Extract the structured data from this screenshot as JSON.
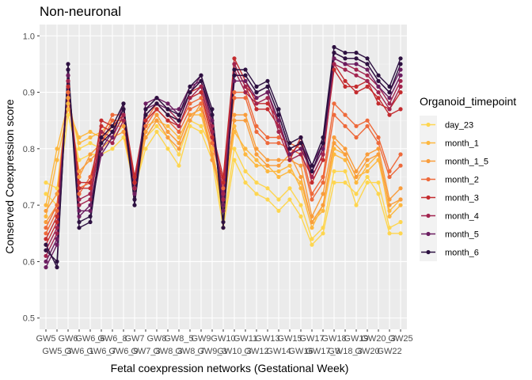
{
  "chart_data": {
    "type": "line",
    "title": "Non-neuronal",
    "xlabel": "Fetal coexpression networks (Gestational Week)",
    "ylabel": "Conserved Coexpression score",
    "ylim": [
      0.48,
      1.02
    ],
    "yticks": [
      0.5,
      0.6,
      0.7,
      0.8,
      0.9,
      1.0
    ],
    "grid": true,
    "legend_position": "right",
    "categories": [
      "GW5",
      "GW5_3",
      "GW6",
      "GW6_1",
      "GW6_6",
      "GW6_7",
      "GW6_8",
      "GW6_9",
      "GW7",
      "GW7_3",
      "GW8",
      "GW8_3",
      "GW8_5",
      "GW8_7",
      "GW9",
      "GW9_3",
      "GW10",
      "GW10_3",
      "GW11",
      "GW12",
      "GW13",
      "GW14",
      "GW15",
      "GW16",
      "GW17",
      "GW17_3",
      "GW18",
      "GW18_3",
      "GW19",
      "GW20",
      "GW20_3",
      "GW22",
      "GW25"
    ],
    "x_tick_labels": [
      "GW5",
      "GW5_3",
      "GW6",
      "GW6_1",
      "GW6_6",
      "GW6_7",
      "GW6_8",
      "GW6_9",
      "GW7",
      "GW7_3",
      "GW8",
      "GW8_3",
      "GW8_5",
      "GW8_7",
      "GW9",
      "GW9_3",
      "GW10",
      "GW10_3",
      "GW11",
      "GW12",
      "GW13",
      "GW14",
      "GW15",
      "GW16",
      "GW17",
      "GW17_3",
      "GW18",
      "GW18_3",
      "GW19",
      "GW20",
      "GW20_3",
      "GW22",
      "GW25"
    ],
    "legend_title": "Organoid_timepoint",
    "series": [
      {
        "name": "day_23",
        "color": "#FED650",
        "lines": [
          [
            0.74,
            0.73,
            0.89,
            0.8,
            0.81,
            0.8,
            0.82,
            0.84,
            0.72,
            0.82,
            0.84,
            0.82,
            0.79,
            0.85,
            0.84,
            0.8,
            0.67,
            0.8,
            0.76,
            0.74,
            0.73,
            0.71,
            0.73,
            0.7,
            0.64,
            0.66,
            0.76,
            0.76,
            0.7,
            0.74,
            0.74,
            0.66,
            0.67
          ],
          [
            0.72,
            0.7,
            0.86,
            0.78,
            0.79,
            0.79,
            0.8,
            0.82,
            0.73,
            0.8,
            0.83,
            0.8,
            0.77,
            0.84,
            0.83,
            0.78,
            0.66,
            0.78,
            0.74,
            0.72,
            0.71,
            0.69,
            0.71,
            0.68,
            0.63,
            0.65,
            0.74,
            0.74,
            0.72,
            0.75,
            0.72,
            0.65,
            0.65
          ]
        ]
      },
      {
        "name": "month_1",
        "color": "#FDB840",
        "lines": [
          [
            0.7,
            0.8,
            0.88,
            0.81,
            0.82,
            0.83,
            0.85,
            0.85,
            0.75,
            0.84,
            0.85,
            0.84,
            0.82,
            0.86,
            0.86,
            0.79,
            0.69,
            0.84,
            0.79,
            0.77,
            0.77,
            0.75,
            0.76,
            0.74,
            0.67,
            0.69,
            0.79,
            0.78,
            0.74,
            0.77,
            0.79,
            0.68,
            0.7
          ],
          [
            0.68,
            0.78,
            0.87,
            0.82,
            0.83,
            0.82,
            0.84,
            0.85,
            0.74,
            0.83,
            0.86,
            0.83,
            0.81,
            0.86,
            0.87,
            0.8,
            0.7,
            0.83,
            0.8,
            0.78,
            0.76,
            0.76,
            0.77,
            0.73,
            0.66,
            0.7,
            0.8,
            0.79,
            0.75,
            0.76,
            0.78,
            0.69,
            0.71
          ]
        ]
      },
      {
        "name": "month_1_5",
        "color": "#F99D3C",
        "lines": [
          [
            0.69,
            0.72,
            0.9,
            0.75,
            0.79,
            0.81,
            0.84,
            0.84,
            0.74,
            0.83,
            0.86,
            0.83,
            0.81,
            0.86,
            0.87,
            0.79,
            0.7,
            0.86,
            0.86,
            0.8,
            0.78,
            0.78,
            0.78,
            0.77,
            0.68,
            0.72,
            0.82,
            0.8,
            0.76,
            0.79,
            0.8,
            0.71,
            0.73
          ],
          [
            0.67,
            0.7,
            0.89,
            0.76,
            0.78,
            0.8,
            0.82,
            0.83,
            0.73,
            0.82,
            0.85,
            0.82,
            0.8,
            0.85,
            0.88,
            0.78,
            0.71,
            0.85,
            0.85,
            0.79,
            0.77,
            0.77,
            0.79,
            0.75,
            0.67,
            0.7,
            0.81,
            0.79,
            0.75,
            0.78,
            0.79,
            0.7,
            0.71
          ]
        ]
      },
      {
        "name": "month_2",
        "color": "#EE6A3B",
        "lines": [
          [
            0.66,
            0.7,
            0.91,
            0.72,
            0.75,
            0.82,
            0.86,
            0.86,
            0.75,
            0.85,
            0.88,
            0.86,
            0.84,
            0.88,
            0.89,
            0.82,
            0.74,
            0.9,
            0.9,
            0.84,
            0.82,
            0.82,
            0.81,
            0.8,
            0.72,
            0.75,
            0.88,
            0.86,
            0.84,
            0.85,
            0.82,
            0.76,
            0.79
          ],
          [
            0.65,
            0.69,
            0.9,
            0.73,
            0.74,
            0.81,
            0.85,
            0.85,
            0.74,
            0.84,
            0.87,
            0.85,
            0.83,
            0.87,
            0.88,
            0.81,
            0.73,
            0.89,
            0.89,
            0.83,
            0.81,
            0.81,
            0.8,
            0.79,
            0.71,
            0.74,
            0.86,
            0.84,
            0.82,
            0.84,
            0.81,
            0.75,
            0.77
          ]
        ]
      },
      {
        "name": "month_3",
        "color": "#C42C2F",
        "lines": [
          [
            0.64,
            0.68,
            0.92,
            0.74,
            0.74,
            0.84,
            0.83,
            0.87,
            0.75,
            0.86,
            0.88,
            0.86,
            0.85,
            0.9,
            0.91,
            0.83,
            0.75,
            0.96,
            0.92,
            0.88,
            0.88,
            0.85,
            0.78,
            0.82,
            0.74,
            0.78,
            0.95,
            0.92,
            0.9,
            0.91,
            0.89,
            0.86,
            0.87
          ],
          [
            0.63,
            0.67,
            0.91,
            0.73,
            0.73,
            0.85,
            0.84,
            0.86,
            0.74,
            0.85,
            0.87,
            0.85,
            0.84,
            0.89,
            0.9,
            0.82,
            0.74,
            0.95,
            0.91,
            0.87,
            0.87,
            0.84,
            0.79,
            0.81,
            0.75,
            0.79,
            0.94,
            0.91,
            0.91,
            0.92,
            0.88,
            0.87,
            0.9
          ]
        ]
      },
      {
        "name": "month_4",
        "color": "#A2244F",
        "lines": [
          [
            0.62,
            0.66,
            0.93,
            0.71,
            0.72,
            0.83,
            0.82,
            0.86,
            0.73,
            0.87,
            0.89,
            0.87,
            0.85,
            0.9,
            0.92,
            0.84,
            0.72,
            0.95,
            0.91,
            0.89,
            0.9,
            0.84,
            0.79,
            0.8,
            0.76,
            0.8,
            0.96,
            0.95,
            0.94,
            0.93,
            0.91,
            0.88,
            0.92
          ],
          [
            0.61,
            0.65,
            0.92,
            0.7,
            0.71,
            0.82,
            0.81,
            0.85,
            0.72,
            0.86,
            0.88,
            0.86,
            0.84,
            0.89,
            0.91,
            0.83,
            0.71,
            0.94,
            0.9,
            0.88,
            0.89,
            0.83,
            0.78,
            0.79,
            0.75,
            0.79,
            0.95,
            0.94,
            0.93,
            0.92,
            0.9,
            0.87,
            0.91
          ]
        ]
      },
      {
        "name": "month_5",
        "color": "#6C1E61",
        "lines": [
          [
            0.6,
            0.64,
            0.94,
            0.68,
            0.7,
            0.8,
            0.83,
            0.87,
            0.72,
            0.88,
            0.89,
            0.88,
            0.86,
            0.9,
            0.93,
            0.86,
            0.7,
            0.93,
            0.93,
            0.9,
            0.91,
            0.86,
            0.8,
            0.81,
            0.77,
            0.81,
            0.97,
            0.96,
            0.96,
            0.95,
            0.92,
            0.9,
            0.94
          ],
          [
            0.59,
            0.63,
            0.93,
            0.69,
            0.69,
            0.79,
            0.82,
            0.88,
            0.71,
            0.87,
            0.88,
            0.87,
            0.87,
            0.91,
            0.92,
            0.85,
            0.69,
            0.92,
            0.92,
            0.89,
            0.9,
            0.85,
            0.79,
            0.8,
            0.76,
            0.8,
            0.96,
            0.95,
            0.95,
            0.94,
            0.91,
            0.89,
            0.93
          ]
        ]
      },
      {
        "name": "month_6",
        "color": "#2D1141",
        "lines": [
          [
            0.63,
            0.59,
            0.95,
            0.67,
            0.68,
            0.82,
            0.84,
            0.88,
            0.71,
            0.87,
            0.89,
            0.87,
            0.86,
            0.91,
            0.93,
            0.87,
            0.66,
            0.94,
            0.94,
            0.91,
            0.92,
            0.87,
            0.81,
            0.82,
            0.77,
            0.82,
            0.98,
            0.97,
            0.97,
            0.96,
            0.93,
            0.91,
            0.96
          ],
          [
            0.62,
            0.6,
            0.94,
            0.66,
            0.67,
            0.81,
            0.83,
            0.87,
            0.7,
            0.86,
            0.88,
            0.86,
            0.85,
            0.9,
            0.92,
            0.86,
            0.67,
            0.93,
            0.93,
            0.9,
            0.91,
            0.86,
            0.8,
            0.81,
            0.76,
            0.81,
            0.97,
            0.96,
            0.96,
            0.95,
            0.92,
            0.9,
            0.95
          ]
        ]
      }
    ]
  }
}
